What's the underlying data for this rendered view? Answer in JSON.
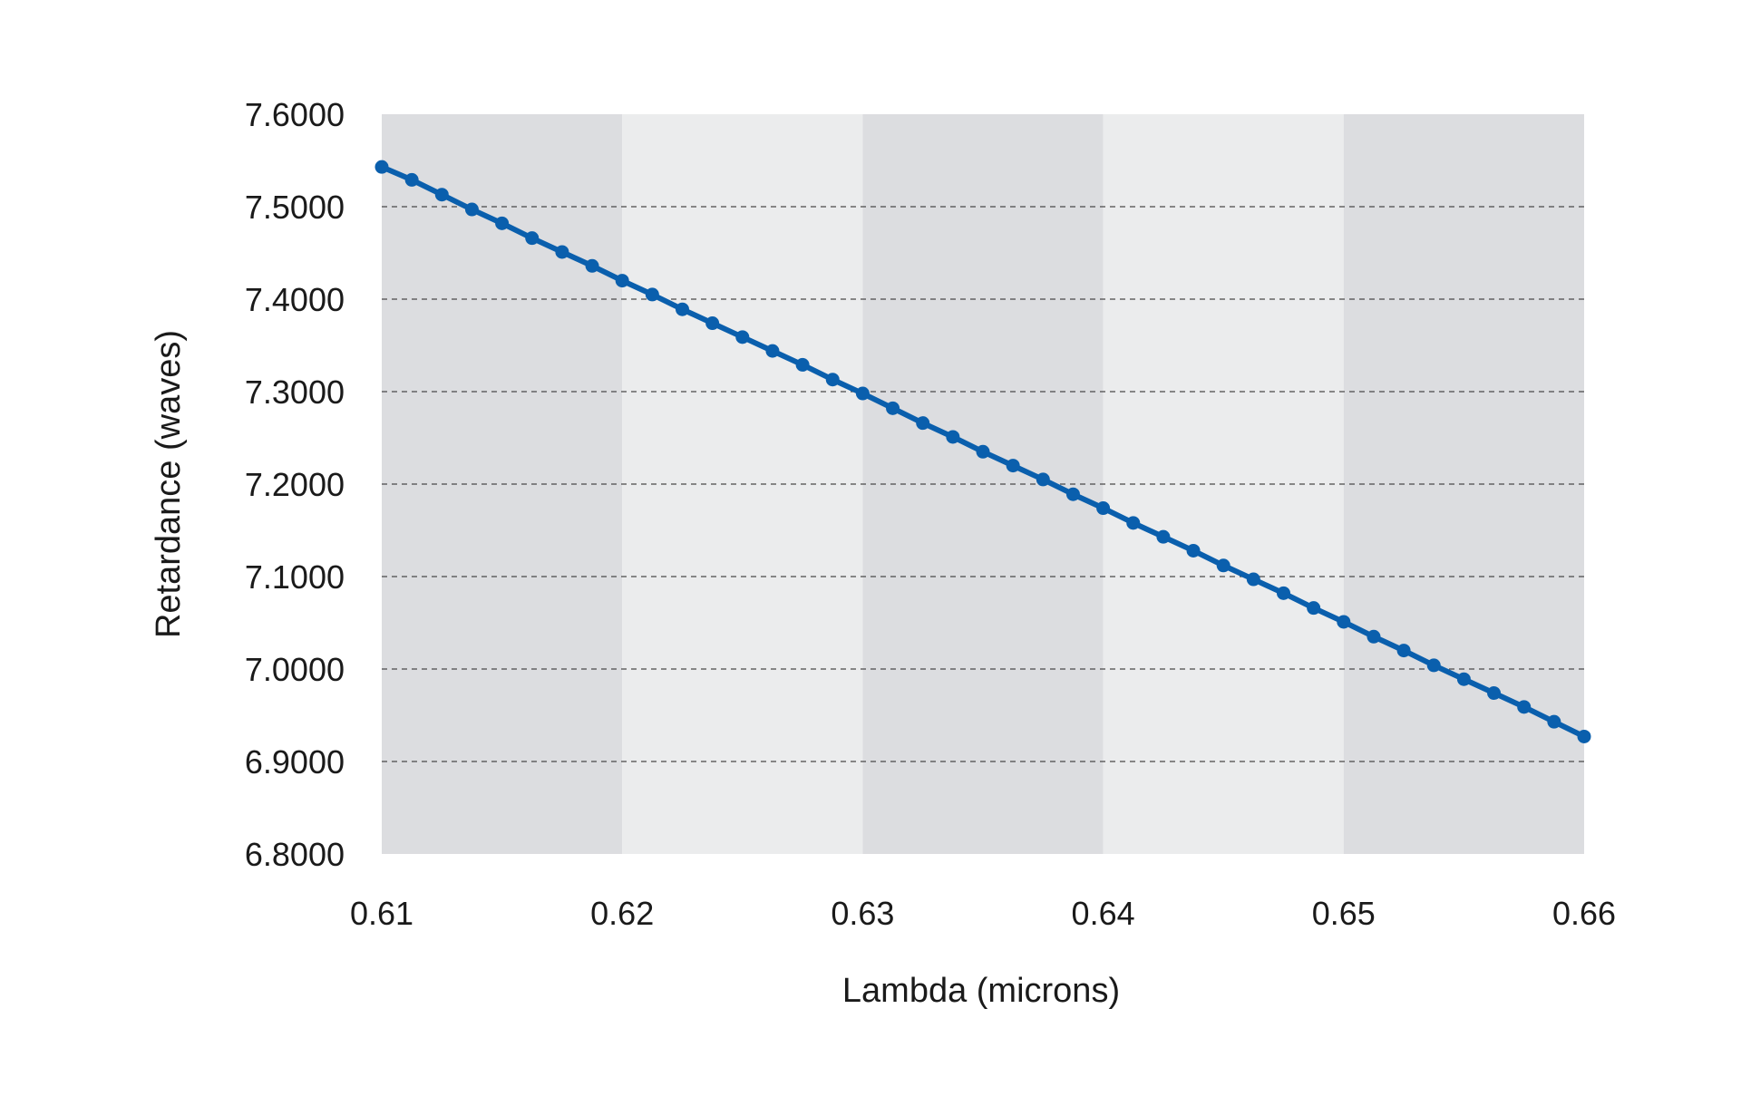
{
  "chart_data": {
    "type": "line",
    "title": "",
    "xlabel": "Lambda (microns)",
    "ylabel": "Retardance (waves)",
    "xlim": [
      0.61,
      0.66
    ],
    "ylim": [
      6.8,
      7.6
    ],
    "x_ticks": [
      "0.61",
      "0.62",
      "0.63",
      "0.64",
      "0.65",
      "0.66"
    ],
    "x_tick_values": [
      0.61,
      0.62,
      0.63,
      0.64,
      0.65,
      0.66
    ],
    "y_ticks": [
      "6.8000",
      "6.9000",
      "7.0000",
      "7.1000",
      "7.2000",
      "7.3000",
      "7.4000",
      "7.5000",
      "7.6000"
    ],
    "y_tick_values": [
      6.8,
      6.9,
      7.0,
      7.1,
      7.2,
      7.3,
      7.4,
      7.5,
      7.6
    ],
    "grid": "horizontal dashed",
    "band_colors": [
      "#dcdde0",
      "#ebeced"
    ],
    "series_color": "#0a5fad",
    "x": [
      0.61,
      0.61125,
      0.6125,
      0.61375,
      0.615,
      0.61625,
      0.6175,
      0.61875,
      0.62,
      0.62125,
      0.6225,
      0.62375,
      0.625,
      0.62625,
      0.6275,
      0.62875,
      0.63,
      0.63125,
      0.6325,
      0.63375,
      0.635,
      0.63625,
      0.6375,
      0.63875,
      0.64,
      0.64125,
      0.6425,
      0.64375,
      0.645,
      0.64625,
      0.6475,
      0.64875,
      0.65,
      0.65125,
      0.6525,
      0.65375,
      0.655,
      0.65625,
      0.6575,
      0.65875,
      0.66
    ],
    "series": [
      {
        "values": [
          7.543,
          7.529,
          7.513,
          7.497,
          7.482,
          7.466,
          7.451,
          7.436,
          7.42,
          7.405,
          7.389,
          7.374,
          7.359,
          7.344,
          7.329,
          7.313,
          7.298,
          7.282,
          7.266,
          7.251,
          7.235,
          7.22,
          7.205,
          7.189,
          7.174,
          7.158,
          7.143,
          7.128,
          7.112,
          7.097,
          7.082,
          7.066,
          7.051,
          7.035,
          7.02,
          7.004,
          6.989,
          6.974,
          6.959,
          6.943,
          6.927
        ]
      }
    ]
  }
}
